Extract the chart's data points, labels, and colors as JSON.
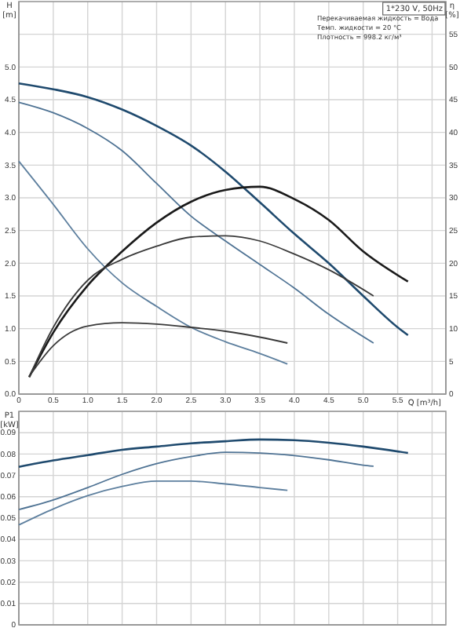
{
  "chart_data": [
    {
      "type": "line",
      "xlabel": "Q [m³/h]",
      "ylabel": "H [m]",
      "y2label": "η [%]",
      "annotations": [
        "1*230 V, 50Hz",
        "Перекачиваемая жидкость = Вода",
        "Темп. жидкости = 20 °C",
        "Плотность = 998.2 кг/м³"
      ],
      "xlim": [
        0,
        6.2
      ],
      "ylim": [
        0,
        6
      ],
      "y2lim": [
        0,
        60
      ],
      "xticks": [
        {
          "value": 0,
          "label": "0"
        },
        {
          "value": 0.5,
          "label": "0.5"
        },
        {
          "value": 1,
          "label": "1.0"
        },
        {
          "value": 1.5,
          "label": "1.5"
        },
        {
          "value": 2,
          "label": "2.0"
        },
        {
          "value": 2.5,
          "label": "2.5"
        },
        {
          "value": 3,
          "label": "3.0"
        },
        {
          "value": 3.5,
          "label": "3.5"
        },
        {
          "value": 4,
          "label": "4.0"
        },
        {
          "value": 4.5,
          "label": "4.5"
        },
        {
          "value": 5,
          "label": "5.0"
        },
        {
          "value": 5.5,
          "label": "5.5"
        },
        {
          "value": 6,
          "label": null
        }
      ],
      "yticks": [
        {
          "value": 0,
          "label": "0.0"
        },
        0.5,
        {
          "value": 1,
          "label": "1.0"
        },
        1.5,
        {
          "value": 2,
          "label": "2.0"
        },
        2.5,
        {
          "value": 3,
          "label": "3.0"
        },
        3.5,
        {
          "value": 4,
          "label": "4.0"
        },
        4.5,
        {
          "value": 5,
          "label": "5.0"
        },
        {
          "value": 5.5,
          "label": null
        }
      ],
      "y2ticks": [
        0,
        5,
        10,
        15,
        20,
        25,
        30,
        35,
        40,
        45,
        50,
        55
      ],
      "grid": true,
      "marker": "none",
      "line_style": "solid",
      "series": [
        {
          "color": "#1f4a6e",
          "x": [
            0,
            0.5,
            1,
            1.5,
            2,
            2.5,
            3,
            3.5,
            4,
            4.5,
            5,
            5.5,
            5.65
          ],
          "values": [
            4.75,
            4.66,
            4.54,
            4.35,
            4.1,
            3.8,
            3.4,
            2.93,
            2.45,
            2.0,
            1.5,
            1.02,
            0.9
          ]
        },
        {
          "color": "#4f7394",
          "x": [
            0,
            0.5,
            1,
            1.5,
            2,
            2.5,
            3,
            3.5,
            4,
            4.5,
            5.15
          ],
          "values": [
            4.46,
            4.3,
            4.06,
            3.72,
            3.22,
            2.72,
            2.34,
            1.98,
            1.62,
            1.22,
            0.78
          ]
        },
        {
          "color": "#5d7f9e",
          "x": [
            0,
            0.5,
            1,
            1.5,
            2,
            2.5,
            3,
            3.5,
            3.9
          ],
          "values": [
            3.56,
            2.9,
            2.22,
            1.7,
            1.34,
            1.02,
            0.8,
            0.62,
            0.46
          ]
        },
        {
          "axis": "y2",
          "color": "#1a1a1a",
          "x": [
            0.15,
            0.5,
            1,
            1.5,
            2,
            2.5,
            3,
            3.5,
            4,
            4.5,
            5,
            5.65
          ],
          "values": [
            2.6,
            9.4,
            16.6,
            21.8,
            26.2,
            29.4,
            31.2,
            31.7,
            29.8,
            26.6,
            21.8,
            17.2
          ]
        },
        {
          "axis": "y2",
          "color": "#3a3a3a",
          "x": [
            0.15,
            0.5,
            1,
            1.5,
            2,
            2.5,
            3,
            3.5,
            4,
            4.5,
            5.15
          ],
          "values": [
            2.6,
            10.2,
            17.4,
            20.6,
            22.6,
            24,
            24.2,
            23.4,
            21.4,
            19,
            15
          ]
        },
        {
          "axis": "y2",
          "color": "#3a3a3a",
          "x": [
            0.15,
            0.5,
            1,
            1.5,
            2,
            2.5,
            3,
            3.5,
            3.9
          ],
          "values": [
            2.7,
            7.4,
            10.4,
            10.9,
            10.7,
            10.2,
            9.6,
            8.7,
            7.8
          ]
        }
      ]
    },
    {
      "type": "line",
      "ylabel": "P1 [kW]",
      "tick_labels": "y",
      "xlim": [
        0,
        6.2
      ],
      "ylim": [
        0,
        0.1
      ],
      "xticks": [
        0,
        0.5,
        1,
        1.5,
        2,
        2.5,
        3,
        3.5,
        4,
        4.5,
        5,
        5.5,
        6
      ],
      "yticks": [
        0,
        0.01,
        0.02,
        0.03,
        0.04,
        0.05,
        0.06,
        0.07,
        0.08,
        0.09,
        {
          "value": 0.1,
          "label": null
        }
      ],
      "grid": true,
      "marker": "none",
      "line_style": "solid",
      "series": [
        {
          "color": "#1f4a6e",
          "x": [
            0,
            0.5,
            1,
            1.5,
            2,
            2.5,
            3,
            3.5,
            4,
            4.5,
            5,
            5.65
          ],
          "values": [
            0.074,
            0.077,
            0.0795,
            0.082,
            0.0835,
            0.085,
            0.086,
            0.0868,
            0.0865,
            0.0853,
            0.0835,
            0.0805
          ]
        },
        {
          "color": "#4f7394",
          "x": [
            0,
            0.5,
            1,
            1.5,
            2,
            2.5,
            3,
            3.5,
            4,
            4.5,
            5,
            5.15
          ],
          "values": [
            0.054,
            0.0585,
            0.0643,
            0.0705,
            0.0755,
            0.0788,
            0.0808,
            0.0805,
            0.0793,
            0.0773,
            0.0748,
            0.0743
          ]
        },
        {
          "color": "#5d7f9e",
          "x": [
            0,
            0.5,
            1,
            1.5,
            2,
            2.5,
            3,
            3.5,
            3.9
          ],
          "values": [
            0.0468,
            0.0543,
            0.0605,
            0.0648,
            0.0673,
            0.0673,
            0.066,
            0.0643,
            0.063
          ]
        }
      ]
    }
  ]
}
